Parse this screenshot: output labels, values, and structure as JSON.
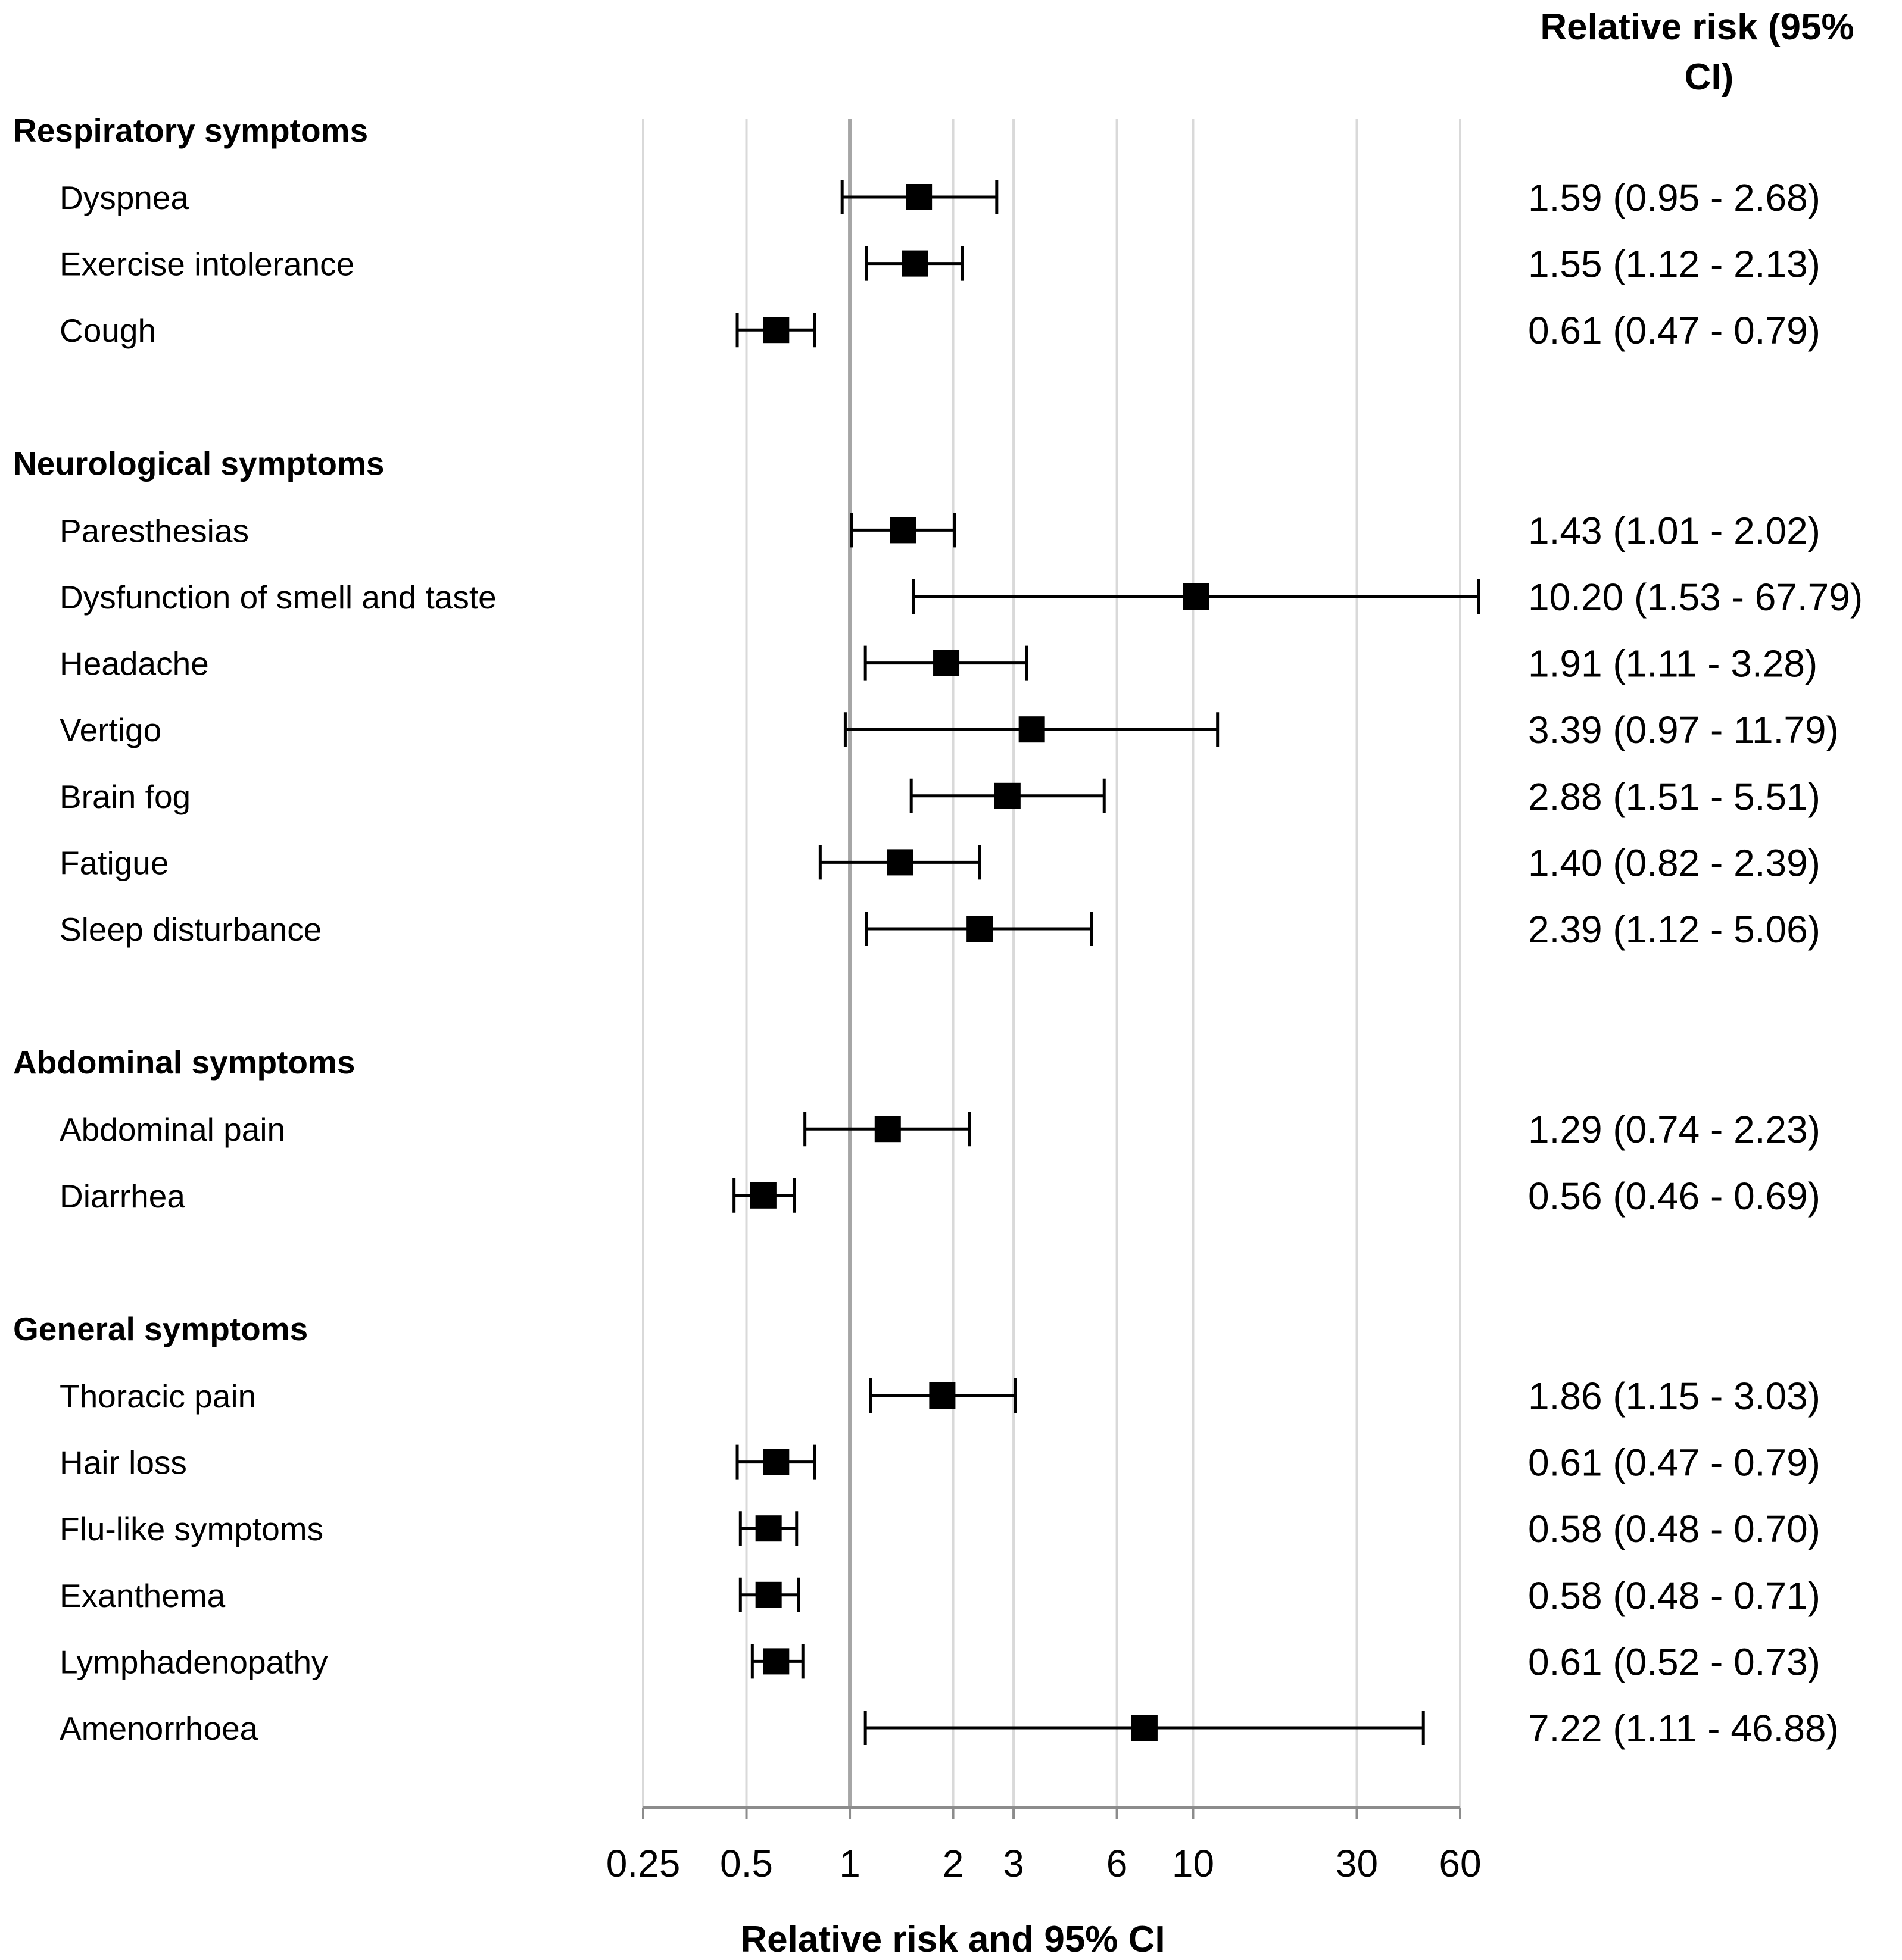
{
  "chart_data": {
    "type": "forest",
    "header": "Relative risk (95% CI)",
    "xlabel": "Relative risk and 95% CI",
    "xscale": "log",
    "xlim": [
      0.25,
      60
    ],
    "xticks": [
      0.25,
      0.5,
      1,
      2,
      3,
      6,
      10,
      30,
      60
    ],
    "xtick_labels": [
      "0.25",
      "0.5",
      "1",
      "2",
      "3",
      "6",
      "10",
      "30",
      "60"
    ],
    "reference_line": 1,
    "groups": [
      {
        "name": "Respiratory symptoms",
        "rows": [
          {
            "label": "Dyspnea",
            "rr": 1.59,
            "lo": 0.95,
            "hi": 2.68,
            "text": "1.59 (0.95 - 2.68)"
          },
          {
            "label": "Exercise intolerance",
            "rr": 1.55,
            "lo": 1.12,
            "hi": 2.13,
            "text": "1.55 (1.12 - 2.13)"
          },
          {
            "label": "Cough",
            "rr": 0.61,
            "lo": 0.47,
            "hi": 0.79,
            "text": "0.61 (0.47 - 0.79)"
          }
        ]
      },
      {
        "name": "Neurological symptoms",
        "rows": [
          {
            "label": "Paresthesias",
            "rr": 1.43,
            "lo": 1.01,
            "hi": 2.02,
            "text": "1.43 (1.01 - 2.02)"
          },
          {
            "label": "Dysfunction of smell and taste",
            "rr": 10.2,
            "lo": 1.53,
            "hi": 67.79,
            "text": "10.20 (1.53 - 67.79)"
          },
          {
            "label": "Headache",
            "rr": 1.91,
            "lo": 1.11,
            "hi": 3.28,
            "text": "1.91 (1.11 - 3.28)"
          },
          {
            "label": "Vertigo",
            "rr": 3.39,
            "lo": 0.97,
            "hi": 11.79,
            "text": "3.39 (0.97 - 11.79)"
          },
          {
            "label": "Brain fog",
            "rr": 2.88,
            "lo": 1.51,
            "hi": 5.51,
            "text": "2.88 (1.51 - 5.51)"
          },
          {
            "label": "Fatigue",
            "rr": 1.4,
            "lo": 0.82,
            "hi": 2.39,
            "text": "1.40 (0.82 - 2.39)"
          },
          {
            "label": "Sleep disturbance",
            "rr": 2.39,
            "lo": 1.12,
            "hi": 5.06,
            "text": "2.39 (1.12 - 5.06)"
          }
        ]
      },
      {
        "name": "Abdominal symptoms",
        "rows": [
          {
            "label": "Abdominal pain",
            "rr": 1.29,
            "lo": 0.74,
            "hi": 2.23,
            "text": "1.29 (0.74 - 2.23)"
          },
          {
            "label": "Diarrhea",
            "rr": 0.56,
            "lo": 0.46,
            "hi": 0.69,
            "text": "0.56 (0.46 - 0.69)"
          }
        ]
      },
      {
        "name": "General symptoms",
        "rows": [
          {
            "label": "Thoracic pain",
            "rr": 1.86,
            "lo": 1.15,
            "hi": 3.03,
            "text": "1.86 (1.15 - 3.03)"
          },
          {
            "label": "Hair loss",
            "rr": 0.61,
            "lo": 0.47,
            "hi": 0.79,
            "text": "0.61 (0.47 - 0.79)"
          },
          {
            "label": "Flu-like symptoms",
            "rr": 0.58,
            "lo": 0.48,
            "hi": 0.7,
            "text": "0.58 (0.48 - 0.70)"
          },
          {
            "label": "Exanthema",
            "rr": 0.58,
            "lo": 0.48,
            "hi": 0.71,
            "text": "0.58 (0.48 - 0.71)"
          },
          {
            "label": "Lymphadenopathy",
            "rr": 0.61,
            "lo": 0.52,
            "hi": 0.73,
            "text": "0.61 (0.52 - 0.73)"
          },
          {
            "label": "Amenorrhoea",
            "rr": 7.22,
            "lo": 1.11,
            "hi": 46.88,
            "text": "7.22 (1.11 - 46.88)"
          }
        ]
      }
    ]
  }
}
